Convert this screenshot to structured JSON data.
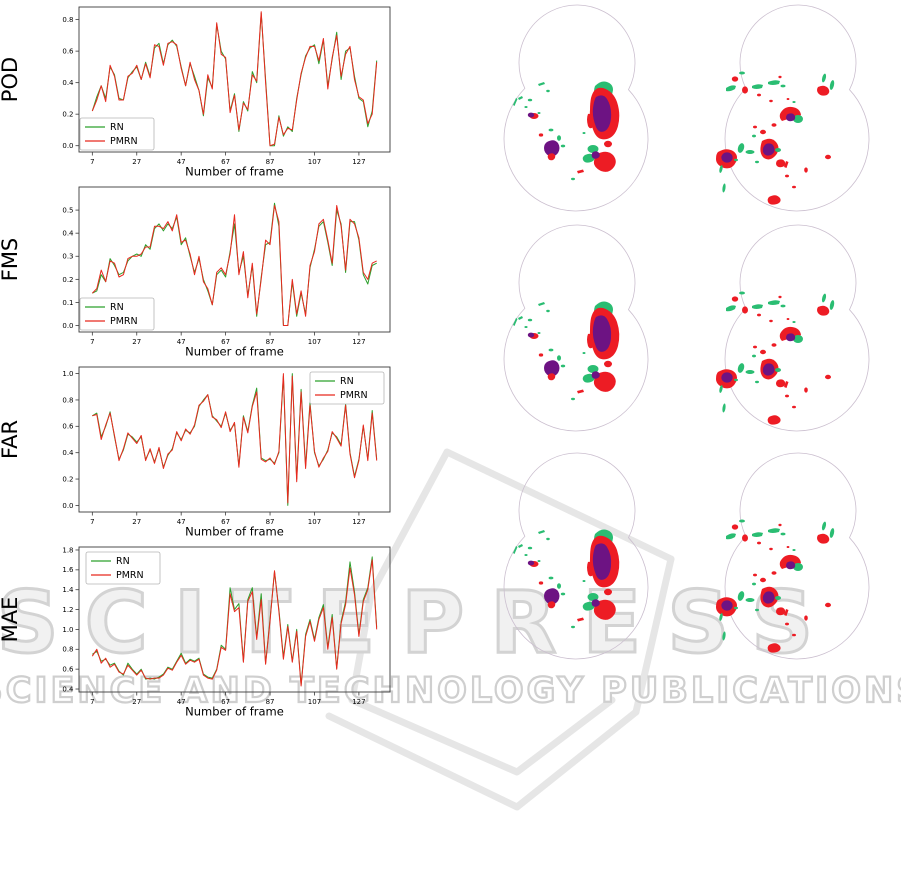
{
  "watermark": {
    "line1": "SCITEPRESS",
    "line2": "SCIENCE AND TECHNOLOGY PUBLICATIONS"
  },
  "colors": {
    "rn_green": "#2ca02c",
    "pmrn_red": "#e8291f",
    "map_green": "#2abd72",
    "map_red": "#ed1c24",
    "map_purple": "#6d1383",
    "map_outline": "#cbbfcf",
    "axis": "#3a3a3a",
    "legend_border": "#b5b5b5"
  },
  "chart_data": [
    {
      "id": "pod",
      "type": "line",
      "ylabel": "POD",
      "xlabel": "Number of frame",
      "xticks": [
        7,
        27,
        47,
        67,
        87,
        107,
        127
      ],
      "yticks": [
        0.0,
        0.2,
        0.4,
        0.6,
        0.8
      ],
      "xlim": [
        1,
        141
      ],
      "ylim": [
        -0.04,
        0.88
      ],
      "x_start": 7,
      "x_step": 2,
      "legend_position": "lower-left",
      "series": [
        {
          "name": "RN",
          "color_key": "rn_green",
          "values": [
            0.22,
            0.31,
            0.38,
            0.3,
            0.5,
            0.45,
            0.3,
            0.29,
            0.43,
            0.47,
            0.5,
            0.42,
            0.53,
            0.44,
            0.62,
            0.65,
            0.52,
            0.64,
            0.67,
            0.63,
            0.5,
            0.38,
            0.52,
            0.44,
            0.35,
            0.19,
            0.43,
            0.37,
            0.77,
            0.6,
            0.55,
            0.22,
            0.33,
            0.09,
            0.28,
            0.22,
            0.47,
            0.4,
            0.84,
            0.42,
            0.0,
            0.0,
            0.19,
            0.06,
            0.12,
            0.09,
            0.3,
            0.45,
            0.57,
            0.62,
            0.64,
            0.52,
            0.67,
            0.38,
            0.55,
            0.72,
            0.42,
            0.6,
            0.62,
            0.44,
            0.3,
            0.28,
            0.12,
            0.22,
            0.54
          ]
        },
        {
          "name": "PMRN",
          "color_key": "pmrn_red",
          "values": [
            0.22,
            0.29,
            0.38,
            0.28,
            0.51,
            0.44,
            0.29,
            0.29,
            0.44,
            0.46,
            0.51,
            0.42,
            0.52,
            0.43,
            0.64,
            0.63,
            0.51,
            0.65,
            0.66,
            0.64,
            0.49,
            0.38,
            0.53,
            0.42,
            0.35,
            0.2,
            0.45,
            0.36,
            0.78,
            0.58,
            0.56,
            0.21,
            0.32,
            0.1,
            0.27,
            0.23,
            0.45,
            0.41,
            0.85,
            0.4,
            0.0,
            0.01,
            0.18,
            0.07,
            0.11,
            0.1,
            0.29,
            0.46,
            0.56,
            0.63,
            0.63,
            0.54,
            0.68,
            0.36,
            0.56,
            0.7,
            0.44,
            0.58,
            0.63,
            0.42,
            0.31,
            0.29,
            0.14,
            0.2,
            0.53
          ]
        }
      ]
    },
    {
      "id": "fms",
      "type": "line",
      "ylabel": "FMS",
      "xlabel": "Number of frame",
      "xticks": [
        7,
        27,
        47,
        67,
        87,
        107,
        127
      ],
      "yticks": [
        0.0,
        0.1,
        0.2,
        0.3,
        0.4,
        0.5
      ],
      "xlim": [
        1,
        141
      ],
      "ylim": [
        -0.028,
        0.6
      ],
      "x_start": 7,
      "x_step": 2,
      "legend_position": "lower-left",
      "series": [
        {
          "name": "RN",
          "color_key": "rn_green",
          "values": [
            0.14,
            0.15,
            0.22,
            0.19,
            0.29,
            0.26,
            0.22,
            0.23,
            0.28,
            0.3,
            0.31,
            0.3,
            0.35,
            0.33,
            0.42,
            0.44,
            0.41,
            0.44,
            0.42,
            0.47,
            0.35,
            0.38,
            0.3,
            0.23,
            0.29,
            0.2,
            0.15,
            0.09,
            0.22,
            0.24,
            0.21,
            0.32,
            0.44,
            0.23,
            0.3,
            0.13,
            0.26,
            0.04,
            0.21,
            0.35,
            0.36,
            0.53,
            0.43,
            0.0,
            0.0,
            0.19,
            0.04,
            0.14,
            0.05,
            0.25,
            0.33,
            0.43,
            0.45,
            0.36,
            0.26,
            0.5,
            0.44,
            0.23,
            0.45,
            0.45,
            0.37,
            0.22,
            0.18,
            0.26,
            0.27
          ]
        },
        {
          "name": "PMRN",
          "color_key": "pmrn_red",
          "values": [
            0.14,
            0.16,
            0.24,
            0.19,
            0.28,
            0.27,
            0.21,
            0.22,
            0.29,
            0.3,
            0.3,
            0.31,
            0.34,
            0.34,
            0.43,
            0.43,
            0.42,
            0.45,
            0.41,
            0.48,
            0.36,
            0.37,
            0.31,
            0.22,
            0.3,
            0.19,
            0.16,
            0.09,
            0.23,
            0.25,
            0.22,
            0.31,
            0.48,
            0.22,
            0.32,
            0.12,
            0.27,
            0.05,
            0.2,
            0.37,
            0.35,
            0.52,
            0.45,
            0.0,
            0.0,
            0.2,
            0.05,
            0.15,
            0.04,
            0.26,
            0.32,
            0.44,
            0.46,
            0.37,
            0.27,
            0.52,
            0.43,
            0.24,
            0.46,
            0.44,
            0.38,
            0.23,
            0.2,
            0.27,
            0.28
          ]
        }
      ]
    },
    {
      "id": "far",
      "type": "line",
      "ylabel": "FAR",
      "xlabel": "Number of frame",
      "xticks": [
        7,
        27,
        47,
        67,
        87,
        107,
        127
      ],
      "yticks": [
        0.0,
        0.2,
        0.4,
        0.6,
        0.8,
        1.0
      ],
      "xlim": [
        1,
        141
      ],
      "ylim": [
        -0.05,
        1.05
      ],
      "x_start": 7,
      "x_step": 2,
      "legend_position": "upper-right",
      "series": [
        {
          "name": "RN",
          "color_key": "rn_green",
          "values": [
            0.68,
            0.7,
            0.52,
            0.6,
            0.71,
            0.52,
            0.35,
            0.42,
            0.54,
            0.52,
            0.48,
            0.52,
            0.35,
            0.42,
            0.33,
            0.43,
            0.29,
            0.38,
            0.43,
            0.55,
            0.5,
            0.57,
            0.55,
            0.6,
            0.75,
            0.8,
            0.84,
            0.68,
            0.64,
            0.6,
            0.7,
            0.57,
            0.62,
            0.3,
            0.68,
            0.56,
            0.76,
            0.89,
            0.36,
            0.34,
            0.35,
            0.32,
            0.4,
            0.98,
            0.0,
            1.0,
            0.2,
            0.88,
            0.3,
            0.78,
            0.4,
            0.3,
            0.35,
            0.42,
            0.55,
            0.52,
            0.46,
            0.77,
            0.4,
            0.22,
            0.35,
            0.6,
            0.35,
            0.72,
            0.35
          ]
        },
        {
          "name": "PMRN",
          "color_key": "pmrn_red",
          "values": [
            0.68,
            0.69,
            0.5,
            0.61,
            0.7,
            0.53,
            0.34,
            0.43,
            0.55,
            0.51,
            0.47,
            0.53,
            0.34,
            0.43,
            0.32,
            0.44,
            0.28,
            0.39,
            0.42,
            0.56,
            0.49,
            0.58,
            0.54,
            0.61,
            0.76,
            0.79,
            0.84,
            0.67,
            0.65,
            0.59,
            0.71,
            0.56,
            0.63,
            0.29,
            0.67,
            0.55,
            0.75,
            0.86,
            0.35,
            0.33,
            0.36,
            0.31,
            0.41,
            1.0,
            0.02,
            0.98,
            0.18,
            0.86,
            0.28,
            0.76,
            0.41,
            0.29,
            0.36,
            0.41,
            0.56,
            0.51,
            0.45,
            0.76,
            0.39,
            0.21,
            0.34,
            0.61,
            0.34,
            0.7,
            0.34
          ]
        }
      ]
    },
    {
      "id": "mae",
      "type": "line",
      "ylabel": "MAE",
      "xlabel": "Number of frame",
      "xticks": [
        7,
        27,
        47,
        67,
        87,
        107,
        127
      ],
      "yticks": [
        0.4,
        0.6,
        0.8,
        1.0,
        1.2,
        1.4,
        1.6,
        1.8
      ],
      "xlim": [
        1,
        141
      ],
      "ylim": [
        0.37,
        1.83
      ],
      "x_start": 7,
      "x_step": 2,
      "legend_position": "upper-left",
      "series": [
        {
          "name": "RN",
          "color_key": "rn_green",
          "values": [
            0.75,
            0.78,
            0.68,
            0.7,
            0.64,
            0.66,
            0.58,
            0.54,
            0.66,
            0.6,
            0.55,
            0.6,
            0.5,
            0.51,
            0.5,
            0.52,
            0.55,
            0.62,
            0.6,
            0.68,
            0.76,
            0.66,
            0.7,
            0.68,
            0.71,
            0.55,
            0.52,
            0.51,
            0.6,
            0.84,
            0.8,
            1.42,
            1.2,
            1.26,
            0.68,
            1.3,
            1.42,
            0.92,
            1.36,
            0.66,
            1.1,
            1.58,
            1.2,
            0.72,
            1.05,
            0.68,
            1.0,
            0.44,
            0.95,
            1.1,
            0.9,
            1.12,
            1.25,
            0.82,
            1.15,
            0.61,
            1.08,
            1.28,
            1.68,
            1.38,
            0.95,
            1.3,
            1.42,
            1.73,
            1.02
          ]
        },
        {
          "name": "PMRN",
          "color_key": "pmrn_red",
          "values": [
            0.73,
            0.8,
            0.66,
            0.71,
            0.62,
            0.65,
            0.57,
            0.55,
            0.64,
            0.59,
            0.54,
            0.59,
            0.51,
            0.5,
            0.51,
            0.51,
            0.54,
            0.61,
            0.59,
            0.67,
            0.74,
            0.65,
            0.69,
            0.67,
            0.7,
            0.54,
            0.51,
            0.5,
            0.59,
            0.82,
            0.79,
            1.36,
            1.18,
            1.22,
            0.67,
            1.28,
            1.38,
            0.9,
            1.3,
            0.65,
            1.08,
            1.59,
            1.18,
            0.7,
            1.03,
            0.67,
            0.98,
            0.43,
            0.93,
            1.08,
            0.88,
            1.1,
            1.22,
            0.8,
            1.12,
            0.6,
            1.06,
            1.25,
            1.62,
            1.35,
            0.93,
            1.28,
            1.4,
            1.7,
            1.0
          ]
        }
      ]
    }
  ],
  "maps": {
    "panels": [
      {
        "name": "map-row1-left",
        "variant": "A",
        "row": 0,
        "col": 0
      },
      {
        "name": "map-row1-right",
        "variant": "B",
        "row": 0,
        "col": 1
      },
      {
        "name": "map-row2-left",
        "variant": "A",
        "row": 1,
        "col": 0
      },
      {
        "name": "map-row2-right",
        "variant": "B",
        "row": 1,
        "col": 1
      },
      {
        "name": "map-row3-left",
        "variant": "A",
        "row": 2,
        "col": 0
      },
      {
        "name": "map-row3-right",
        "variant": "B",
        "row": 2,
        "col": 1
      }
    ]
  }
}
